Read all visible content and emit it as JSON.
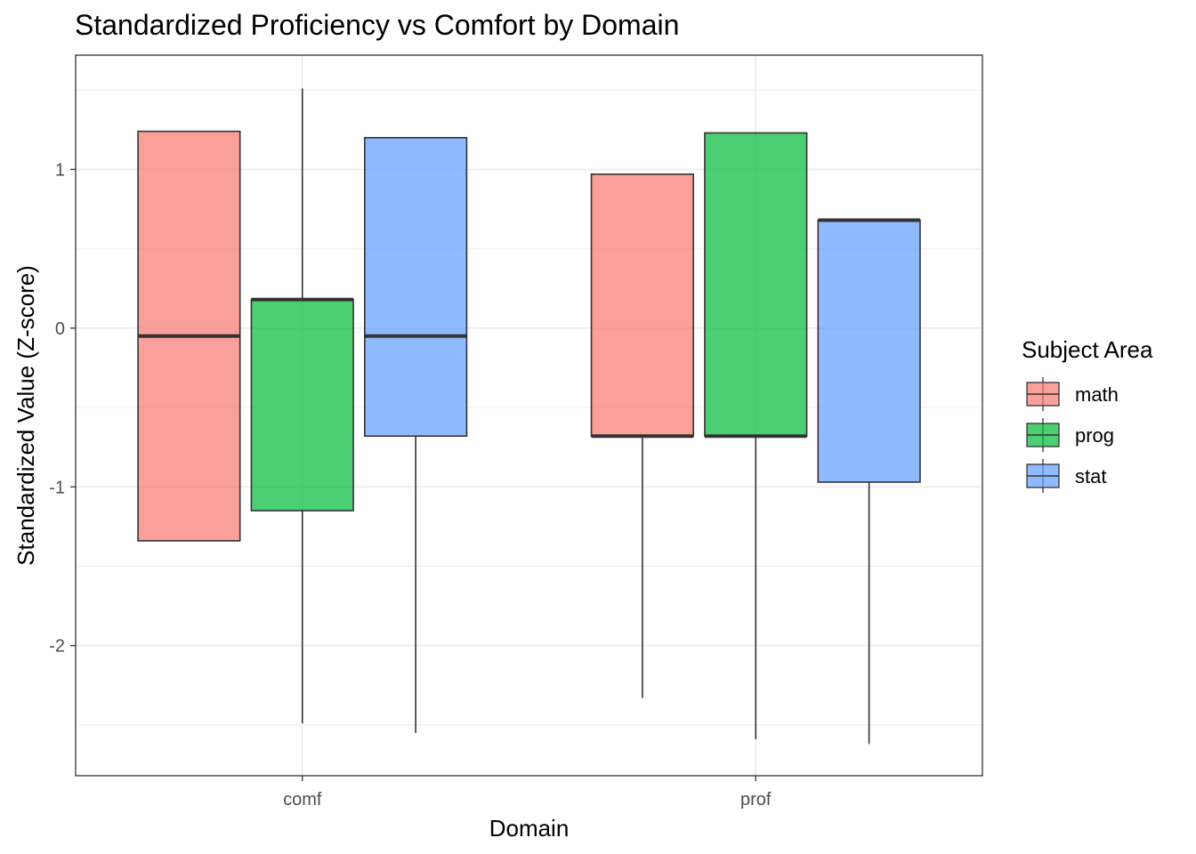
{
  "chart_data": {
    "type": "boxplot",
    "title": "Standardized Proficiency vs Comfort by Domain",
    "xlabel": "Domain",
    "ylabel": "Standardized Value (Z-score)",
    "categories": [
      "comf",
      "prof"
    ],
    "ylim": [
      -2.82,
      1.72
    ],
    "yticks": [
      -2,
      -1,
      0,
      1
    ],
    "y_tick_labels": [
      "-2",
      "-1",
      "0",
      "1"
    ],
    "grid": true,
    "legend": {
      "title": "Subject Area",
      "position": "right"
    },
    "series": [
      {
        "name": "math",
        "color": "#F8766D",
        "boxes": [
          {
            "category": "comf",
            "lower_whisker": -1.34,
            "q1": -1.34,
            "median": -0.05,
            "q3": 1.24,
            "upper_whisker": 1.24
          },
          {
            "category": "prof",
            "lower_whisker": -2.33,
            "q1": -0.68,
            "median": -0.68,
            "q3": 0.97,
            "upper_whisker": 0.97
          }
        ]
      },
      {
        "name": "prog",
        "color": "#00BA38",
        "boxes": [
          {
            "category": "comf",
            "lower_whisker": -2.49,
            "q1": -1.15,
            "median": 0.18,
            "q3": 0.18,
            "upper_whisker": 1.51
          },
          {
            "category": "prof",
            "lower_whisker": -2.59,
            "q1": -0.68,
            "median": -0.68,
            "q3": 1.23,
            "upper_whisker": 1.23
          }
        ]
      },
      {
        "name": "stat",
        "color": "#619CFF",
        "boxes": [
          {
            "category": "comf",
            "lower_whisker": -2.55,
            "q1": -0.68,
            "median": -0.05,
            "q3": 1.2,
            "upper_whisker": 1.2
          },
          {
            "category": "prof",
            "lower_whisker": -2.62,
            "q1": -0.97,
            "median": 0.68,
            "q3": 0.68,
            "upper_whisker": 0.68
          }
        ]
      }
    ]
  }
}
